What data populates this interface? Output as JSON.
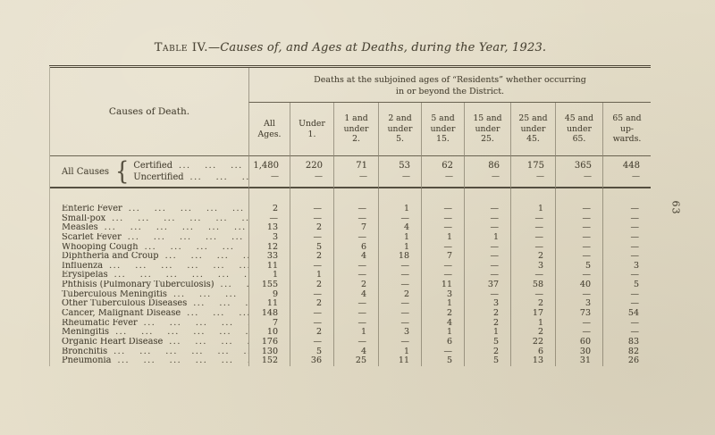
{
  "page": {
    "title_prefix": "Table IV.",
    "title_rest": "—Causes of, and Ages at Deaths, during the Year, 1923.",
    "page_number": "63"
  },
  "table": {
    "causes_of_death_header": "Causes of Death.",
    "spanner": "Deaths at the subjoined ages of “Residents” whether occurring\nin or beyond the District.",
    "leader_dots": "... ... ... ... ... ... ... ... ...",
    "age_columns": [
      "All\nAges.",
      "Under\n1.",
      "1 and\nunder\n2.",
      "2 and\nunder\n5.",
      "5 and\nunder\n15.",
      "15 and\nunder\n25.",
      "25 and\nunder\n45.",
      "45 and\nunder\n65.",
      "65 and\nup-\nwards."
    ],
    "all_causes": {
      "label": "All Causes",
      "brace": "{",
      "sub_rows": [
        {
          "label": "Certified",
          "values": [
            "1,480",
            "220",
            "71",
            "53",
            "62",
            "86",
            "175",
            "365",
            "448"
          ]
        },
        {
          "label": "Uncertified",
          "values": [
            "—",
            "—",
            "—",
            "—",
            "—",
            "—",
            "—",
            "—",
            "—"
          ]
        }
      ]
    },
    "rows": [
      {
        "label": "Enteric Fever",
        "values": [
          "2",
          "—",
          "—",
          "1",
          "—",
          "—",
          "1",
          "—",
          "—"
        ]
      },
      {
        "label": "Small-pox",
        "values": [
          "—",
          "—",
          "—",
          "—",
          "—",
          "—",
          "—",
          "—",
          "—"
        ]
      },
      {
        "label": "Measles",
        "values": [
          "13",
          "2",
          "7",
          "4",
          "—",
          "—",
          "—",
          "—",
          "—"
        ]
      },
      {
        "label": "Scarlet Fever",
        "values": [
          "3",
          "—",
          "—",
          "1",
          "1",
          "1",
          "—",
          "—",
          "—"
        ]
      },
      {
        "label": "Whooping Cough",
        "values": [
          "12",
          "5",
          "6",
          "1",
          "—",
          "—",
          "—",
          "—",
          "—"
        ]
      },
      {
        "label": "Diphtheria and Croup",
        "values": [
          "33",
          "2",
          "4",
          "18",
          "7",
          "—",
          "2",
          "—",
          "—"
        ]
      },
      {
        "label": "Influenza",
        "values": [
          "11",
          "—",
          "—",
          "—",
          "—",
          "—",
          "3",
          "5",
          "3"
        ]
      },
      {
        "label": "Erysipelas",
        "values": [
          "1",
          "1",
          "—",
          "—",
          "—",
          "—",
          "—",
          "—",
          "—"
        ]
      },
      {
        "label": "Phthisis (Pulmonary Tuberculosis)",
        "values": [
          "155",
          "2",
          "2",
          "—",
          "11",
          "37",
          "58",
          "40",
          "5"
        ]
      },
      {
        "label": "Tuberculous Meningitis",
        "values": [
          "9",
          "—",
          "4",
          "2",
          "3",
          "—",
          "—",
          "—",
          "—"
        ]
      },
      {
        "label": "Other Tuberculous Diseases",
        "values": [
          "11",
          "2",
          "—",
          "—",
          "1",
          "3",
          "2",
          "3",
          "—"
        ]
      },
      {
        "label": "Cancer, Malignant Disease",
        "values": [
          "148",
          "—",
          "—",
          "—",
          "2",
          "2",
          "17",
          "73",
          "54"
        ]
      },
      {
        "label": "Rheumatic Fever",
        "values": [
          "7",
          "—",
          "—",
          "—",
          "4",
          "2",
          "1",
          "—",
          "—"
        ]
      },
      {
        "label": "Meningitis",
        "values": [
          "10",
          "2",
          "1",
          "3",
          "1",
          "1",
          "2",
          "—",
          "—"
        ]
      },
      {
        "label": "Organic Heart Disease",
        "values": [
          "176",
          "—",
          "—",
          "—",
          "6",
          "5",
          "22",
          "60",
          "83"
        ]
      },
      {
        "label": "Bronchitis",
        "values": [
          "130",
          "5",
          "4",
          "1",
          "—",
          "2",
          "6",
          "30",
          "82"
        ]
      },
      {
        "label": "Pneumonia",
        "values": [
          "152",
          "36",
          "25",
          "11",
          "5",
          "5",
          "13",
          "31",
          "26"
        ]
      }
    ]
  }
}
